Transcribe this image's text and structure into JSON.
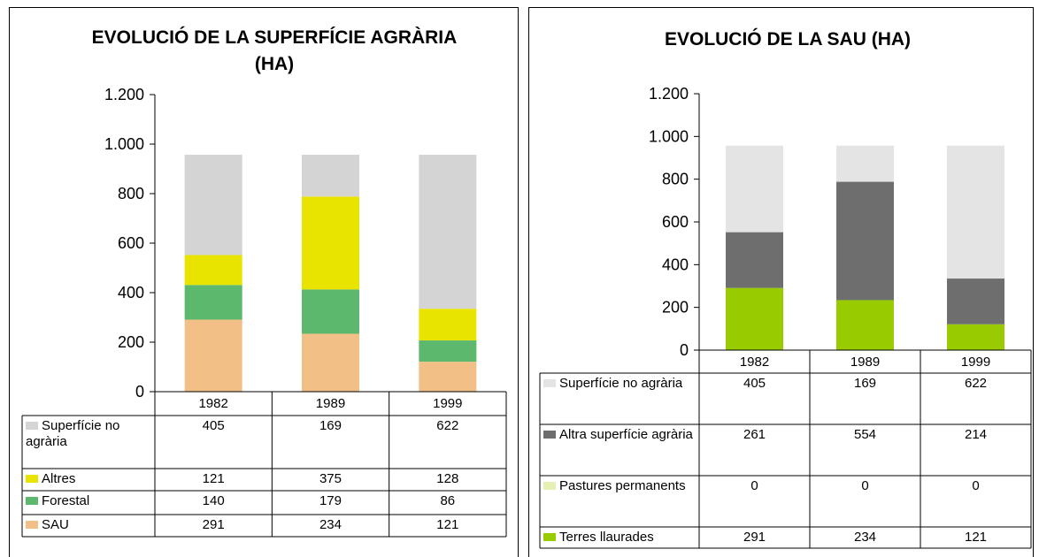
{
  "chart_data": [
    {
      "type": "bar",
      "stacked": true,
      "title": "EVOLUCIÓ DE LA SUPERFÍCIE AGRÀRIA (HA)",
      "categories": [
        "1982",
        "1989",
        "1999"
      ],
      "series": [
        {
          "name": "Superfície no agrària",
          "color": "#d4d4d4",
          "values": [
            405,
            169,
            622
          ]
        },
        {
          "name": "Altres",
          "color": "#e8e400",
          "values": [
            121,
            375,
            128
          ]
        },
        {
          "name": "Forestal",
          "color": "#5cb86c",
          "values": [
            140,
            179,
            86
          ]
        },
        {
          "name": "SAU",
          "color": "#f2c086",
          "values": [
            291,
            234,
            121
          ]
        }
      ],
      "ylim": [
        0,
        1200
      ],
      "yticks": [
        0,
        200,
        400,
        600,
        800,
        {
          "value": 1000,
          "label": "1.000"
        },
        {
          "value": 1200,
          "label": "1.200"
        }
      ]
    },
    {
      "type": "bar",
      "stacked": true,
      "title": "EVOLUCIÓ DE LA SAU (HA)",
      "categories": [
        "1982",
        "1989",
        "1999"
      ],
      "series": [
        {
          "name": "Superfície no agrària",
          "color": "#e4e4e4",
          "values": [
            405,
            169,
            622
          ]
        },
        {
          "name": "Altra superfície agrària",
          "color": "#6e6e6e",
          "values": [
            261,
            554,
            214
          ]
        },
        {
          "name": "Pastures permanents",
          "color": "#e6f0b4",
          "values": [
            0,
            0,
            0
          ]
        },
        {
          "name": "Terres llaurades",
          "color": "#99cc00",
          "values": [
            291,
            234,
            121
          ]
        }
      ],
      "ylim": [
        0,
        1200
      ],
      "yticks": [
        0,
        200,
        400,
        600,
        800,
        {
          "value": 1000,
          "label": "1.000"
        },
        {
          "value": 1200,
          "label": "1.200"
        }
      ]
    }
  ]
}
